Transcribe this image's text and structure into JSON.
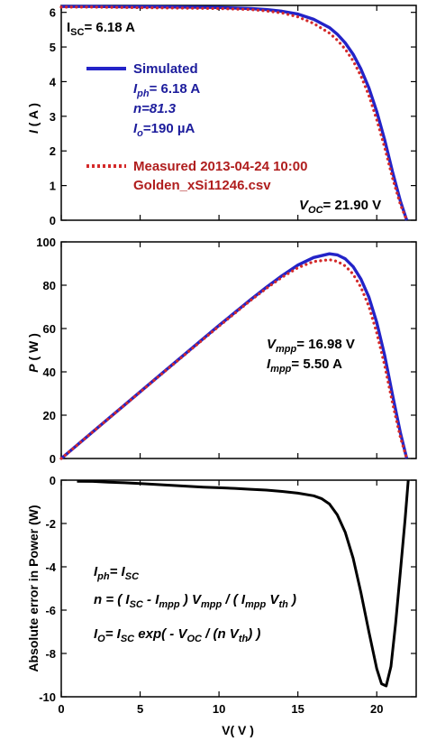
{
  "colors": {
    "simulated": "#2323c8",
    "measured": "#d42a2a",
    "annotation_blue": "#1c1c9c",
    "annotation_red": "#b01e1e",
    "error_line": "#000000"
  },
  "panel1": {
    "ylabel": "I ( A )",
    "isc_label": "I_SC= 6.18 A",
    "voc_label": "V_OC= 21.90 V",
    "legend": {
      "simulated": "Simulated",
      "iph": "I_ph= 6.18 A",
      "n": "n=81.3",
      "io": "I_o=190 µA",
      "measured_line1": "Measured 2013-04-24 10:00",
      "measured_line2": "Golden_xSi11246.csv"
    }
  },
  "panel2": {
    "ylabel": "P ( W )",
    "vmpp_label": "V_mpp= 16.98 V",
    "impp_label": "I_mpp= 5.50 A"
  },
  "panel3": {
    "ylabel": "Absolute error in Power (W)",
    "eq1": "I_ph= I_SC",
    "eq2": "n = ( I_SC - I_mpp ) V_mpp / ( I_mpp V_th )",
    "eq3": "I_O= I_SC exp( - V_OC / (n V_th) )"
  },
  "xlabel": "V( V )",
  "chart_data": [
    {
      "type": "line",
      "xlabel": "",
      "ylabel": "I ( A )",
      "xlim": [
        0,
        22.5
      ],
      "ylim": [
        0,
        6.2
      ],
      "xticks": [
        0,
        5,
        10,
        15,
        20
      ],
      "yticks": [
        0,
        1,
        2,
        3,
        4,
        5,
        6
      ],
      "series": [
        {
          "name": "Simulated",
          "style": "solid",
          "x": [
            0,
            2,
            4,
            6,
            8,
            10,
            12,
            13,
            14,
            15,
            16,
            17,
            17.5,
            18,
            18.5,
            19,
            19.5,
            20,
            20.5,
            21,
            21.5,
            21.9
          ],
          "y": [
            6.17,
            6.17,
            6.16,
            6.16,
            6.15,
            6.14,
            6.11,
            6.08,
            6.03,
            5.95,
            5.8,
            5.56,
            5.37,
            5.12,
            4.79,
            4.36,
            3.82,
            3.14,
            2.32,
            1.4,
            0.55,
            0
          ]
        },
        {
          "name": "Measured 2013-04-24 10:00",
          "style": "dotted",
          "x": [
            0,
            2,
            4,
            6,
            8,
            10,
            12,
            13,
            14,
            15,
            16,
            17,
            17.5,
            18,
            18.5,
            19,
            19.5,
            20,
            20.5,
            21,
            21.5,
            21.9
          ],
          "y": [
            6.15,
            6.15,
            6.14,
            6.13,
            6.12,
            6.11,
            6.08,
            6.04,
            5.98,
            5.87,
            5.68,
            5.4,
            5.2,
            4.94,
            4.6,
            4.16,
            3.6,
            2.9,
            2.1,
            1.22,
            0.45,
            0
          ]
        }
      ]
    },
    {
      "type": "line",
      "xlabel": "",
      "ylabel": "P ( W )",
      "xlim": [
        0,
        22.5
      ],
      "ylim": [
        0,
        100
      ],
      "xticks": [
        0,
        5,
        10,
        15,
        20
      ],
      "yticks": [
        0,
        20,
        40,
        60,
        80,
        100
      ],
      "series": [
        {
          "name": "Simulated",
          "style": "solid",
          "x": [
            0,
            2,
            4,
            6,
            8,
            10,
            12,
            13,
            14,
            15,
            16,
            17,
            17.5,
            18,
            18.5,
            19,
            19.5,
            20,
            20.5,
            21,
            21.5,
            21.9
          ],
          "y": [
            0,
            12.34,
            24.64,
            36.96,
            49.2,
            61.4,
            73.3,
            79.0,
            84.4,
            89.3,
            92.8,
            94.5,
            94.0,
            92.2,
            88.6,
            82.8,
            74.5,
            62.8,
            47.6,
            29.4,
            11.8,
            0
          ]
        },
        {
          "name": "Measured 2013-04-24 10:00",
          "style": "dotted",
          "x": [
            0,
            2,
            4,
            6,
            8,
            10,
            12,
            13,
            14,
            15,
            16,
            17,
            17.5,
            18,
            18.5,
            19,
            19.5,
            20,
            20.5,
            21,
            21.5,
            21.9
          ],
          "y": [
            0,
            12.3,
            24.56,
            36.78,
            48.96,
            61.1,
            72.96,
            78.5,
            83.7,
            88.1,
            90.9,
            91.8,
            91.0,
            88.9,
            85.1,
            79.0,
            70.2,
            58.0,
            43.0,
            25.6,
            9.7,
            0
          ]
        }
      ]
    },
    {
      "type": "line",
      "xlabel": "V( V )",
      "ylabel": "Absolute error in Power (W)",
      "xlim": [
        0,
        22.5
      ],
      "ylim": [
        -10,
        0
      ],
      "xticks": [
        0,
        5,
        10,
        15,
        20
      ],
      "yticks": [
        -10,
        -8,
        -6,
        -4,
        -2,
        0
      ],
      "series": [
        {
          "name": "",
          "style": "solid",
          "x": [
            1,
            2,
            3,
            4,
            5,
            6,
            7,
            8,
            9,
            10,
            11,
            12,
            13,
            14,
            15,
            16,
            16.5,
            17,
            17.5,
            18,
            18.5,
            19,
            19.5,
            20,
            20.3,
            20.6,
            20.9,
            21.2,
            21.5,
            21.8,
            22
          ],
          "y": [
            -0.05,
            -0.06,
            -0.09,
            -0.12,
            -0.16,
            -0.2,
            -0.24,
            -0.28,
            -0.32,
            -0.35,
            -0.38,
            -0.42,
            -0.46,
            -0.52,
            -0.6,
            -0.72,
            -0.85,
            -1.1,
            -1.6,
            -2.4,
            -3.6,
            -5.2,
            -7.0,
            -8.7,
            -9.4,
            -9.5,
            -8.6,
            -6.6,
            -4.2,
            -1.8,
            0
          ]
        }
      ]
    }
  ]
}
